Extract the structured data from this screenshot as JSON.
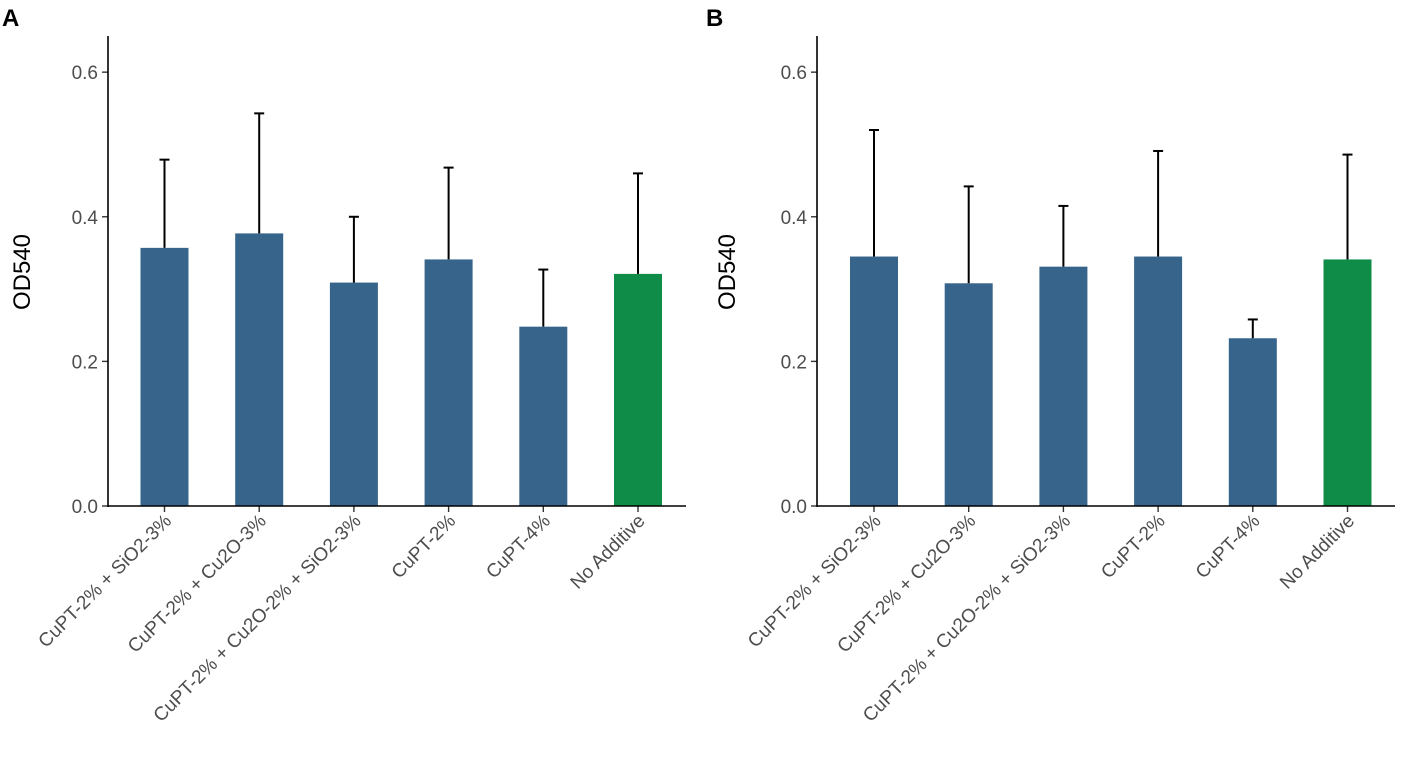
{
  "chart_data": [
    {
      "panel": "A",
      "type": "bar",
      "ylabel": "OD540",
      "xlabel": "",
      "ylim": [
        0,
        0.65
      ],
      "yticks": [
        0.0,
        0.2,
        0.4,
        0.6
      ],
      "ytick_labels": [
        "0.0",
        "0.2",
        "0.4",
        "0.6"
      ],
      "categories": [
        "CuPT-2% + SiO2-3%",
        "CuPT-2% + Cu2O-3%",
        "CuPT-2% + Cu2O-2% + SiO2-3%",
        "CuPT-2%",
        "CuPT-4%",
        "No Additive"
      ],
      "values": [
        0.357,
        0.377,
        0.309,
        0.341,
        0.248,
        0.321
      ],
      "error_upper": [
        0.479,
        0.543,
        0.4,
        0.468,
        0.327,
        0.46
      ],
      "colors": [
        "#36648b",
        "#36648b",
        "#36648b",
        "#36648b",
        "#36648b",
        "#0e8c48"
      ]
    },
    {
      "panel": "B",
      "type": "bar",
      "ylabel": "OD540",
      "xlabel": "",
      "ylim": [
        0,
        0.65
      ],
      "yticks": [
        0.0,
        0.2,
        0.4,
        0.6
      ],
      "ytick_labels": [
        "0.0",
        "0.2",
        "0.4",
        "0.6"
      ],
      "categories": [
        "CuPT-2% + SiO2-3%",
        "CuPT-2% + Cu2O-3%",
        "CuPT-2% + Cu2O-2% + SiO2-3%",
        "CuPT-2%",
        "CuPT-4%",
        "No Additive"
      ],
      "values": [
        0.345,
        0.308,
        0.331,
        0.345,
        0.232,
        0.341
      ],
      "error_upper": [
        0.52,
        0.442,
        0.415,
        0.491,
        0.258,
        0.486
      ],
      "colors": [
        "#36648b",
        "#36648b",
        "#36648b",
        "#36648b",
        "#36648b",
        "#0e8c48"
      ]
    }
  ]
}
